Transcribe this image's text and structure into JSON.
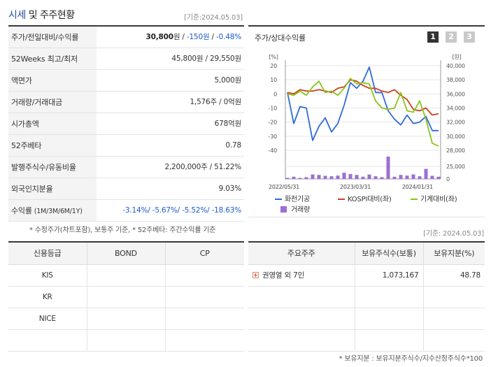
{
  "header": {
    "title_a": "시세",
    "title_b": "및 주주현황",
    "date_ref": "[기준:2024.05.03]"
  },
  "price_table": {
    "rows": [
      {
        "label": "주가/전일대비/수익률",
        "value_main": "30,800",
        "unit": "원",
        "sep": " / ",
        "value_change": "-150원",
        "value_rate": "-0.48%"
      },
      {
        "label": "52Weeks 최고/최저",
        "value": "45,800원 / 29,550원"
      },
      {
        "label": "액면가",
        "value": "5,000원"
      },
      {
        "label": "거래량/거래대금",
        "value": "1,576주 / 0억원"
      },
      {
        "label": "시가총액",
        "value": "678억원"
      },
      {
        "label": "52주베타",
        "value": "0.78"
      },
      {
        "label": "발행주식수/유동비율",
        "value": "2,200,000주 / 51.22%"
      },
      {
        "label": "외국인지분율",
        "value": "9.03%"
      },
      {
        "label": "수익률",
        "label_sub": "(1M/3M/6M/1Y)",
        "value": "-3.14%/ -5.67%/ -5.52%/ -18.63%"
      }
    ]
  },
  "chart_panel": {
    "title": "주가/상대수익률",
    "pages": [
      "1",
      "2",
      "3"
    ],
    "active_page": 1
  },
  "chart_data": {
    "type": "line",
    "left_axis_label": "[%]",
    "right_axis_label": "[원]",
    "left_ylim": [
      -40,
      20
    ],
    "left_ticks": [
      "20",
      "10",
      "0",
      "-10",
      "-20",
      "-30",
      "-40"
    ],
    "right_ylim": [
      28000,
      40000
    ],
    "right_ticks": [
      "40,000",
      "38,000",
      "36,000",
      "34,000",
      "32,000",
      "30,000",
      "28,000"
    ],
    "volume_ticks": [
      "25,000",
      "0"
    ],
    "x_ticks": [
      "2022/05/31",
      "2023/03/31",
      "2024/01/31"
    ],
    "series": [
      {
        "name": "화천기공",
        "color": "#2e6bd9",
        "values": [
          1,
          -21,
          -9,
          -10,
          -33,
          -23,
          -17,
          -27,
          -21,
          -8,
          8,
          4,
          9,
          19,
          1,
          1,
          -12,
          -18,
          -22,
          -15,
          -21,
          -20,
          -16,
          -26,
          -26
        ]
      },
      {
        "name": "KOSPI대비(좌)",
        "color": "#d0401d",
        "values": [
          1,
          0,
          3,
          2,
          2,
          3,
          2,
          1,
          4,
          5,
          10,
          9,
          6,
          4,
          4,
          2,
          1,
          3,
          -1,
          -4,
          -11,
          -12,
          -10,
          -15,
          -14
        ]
      },
      {
        "name": "기계대비(좌)",
        "color": "#8cc41a",
        "values": [
          0,
          -1,
          2,
          -1,
          5,
          9,
          1,
          2,
          -1,
          4,
          11,
          7,
          8,
          7,
          -5,
          -10,
          -11,
          -10,
          1,
          -12,
          -13,
          -5,
          -18,
          -35,
          -37
        ]
      }
    ],
    "volume": {
      "name": "거래량",
      "color": "#9b6fd6",
      "values": [
        0.05,
        0.1,
        0.04,
        0.08,
        0.2,
        0.18,
        0.14,
        0.12,
        0.15,
        0.28,
        0.22,
        0.18,
        0.1,
        0.2,
        0.12,
        0.08,
        1.0,
        0.1,
        0.18,
        0.15,
        0.2,
        0.12,
        0.45,
        0.14,
        0.1
      ]
    }
  },
  "note1": "* 수정주가(차트포함), 보통주 기준, * 52주베타: 주간수익률 기준",
  "note1_date": "[기준: 2024.05.03]",
  "credit_table": {
    "headers": [
      "신용등급",
      "BOND",
      "CP"
    ],
    "rows": [
      "KIS",
      "KR",
      "NICE",
      ""
    ]
  },
  "holder_table": {
    "headers": [
      "주요주주",
      "보유주식수(보통)",
      "보유지분(%)"
    ],
    "rows": [
      {
        "name": "권영열 외 7인",
        "shares": "1,073,167",
        "pct": "48.78"
      }
    ]
  },
  "note2": "* 보유지분 : 보유지분주식수/지수산정주식수*100"
}
